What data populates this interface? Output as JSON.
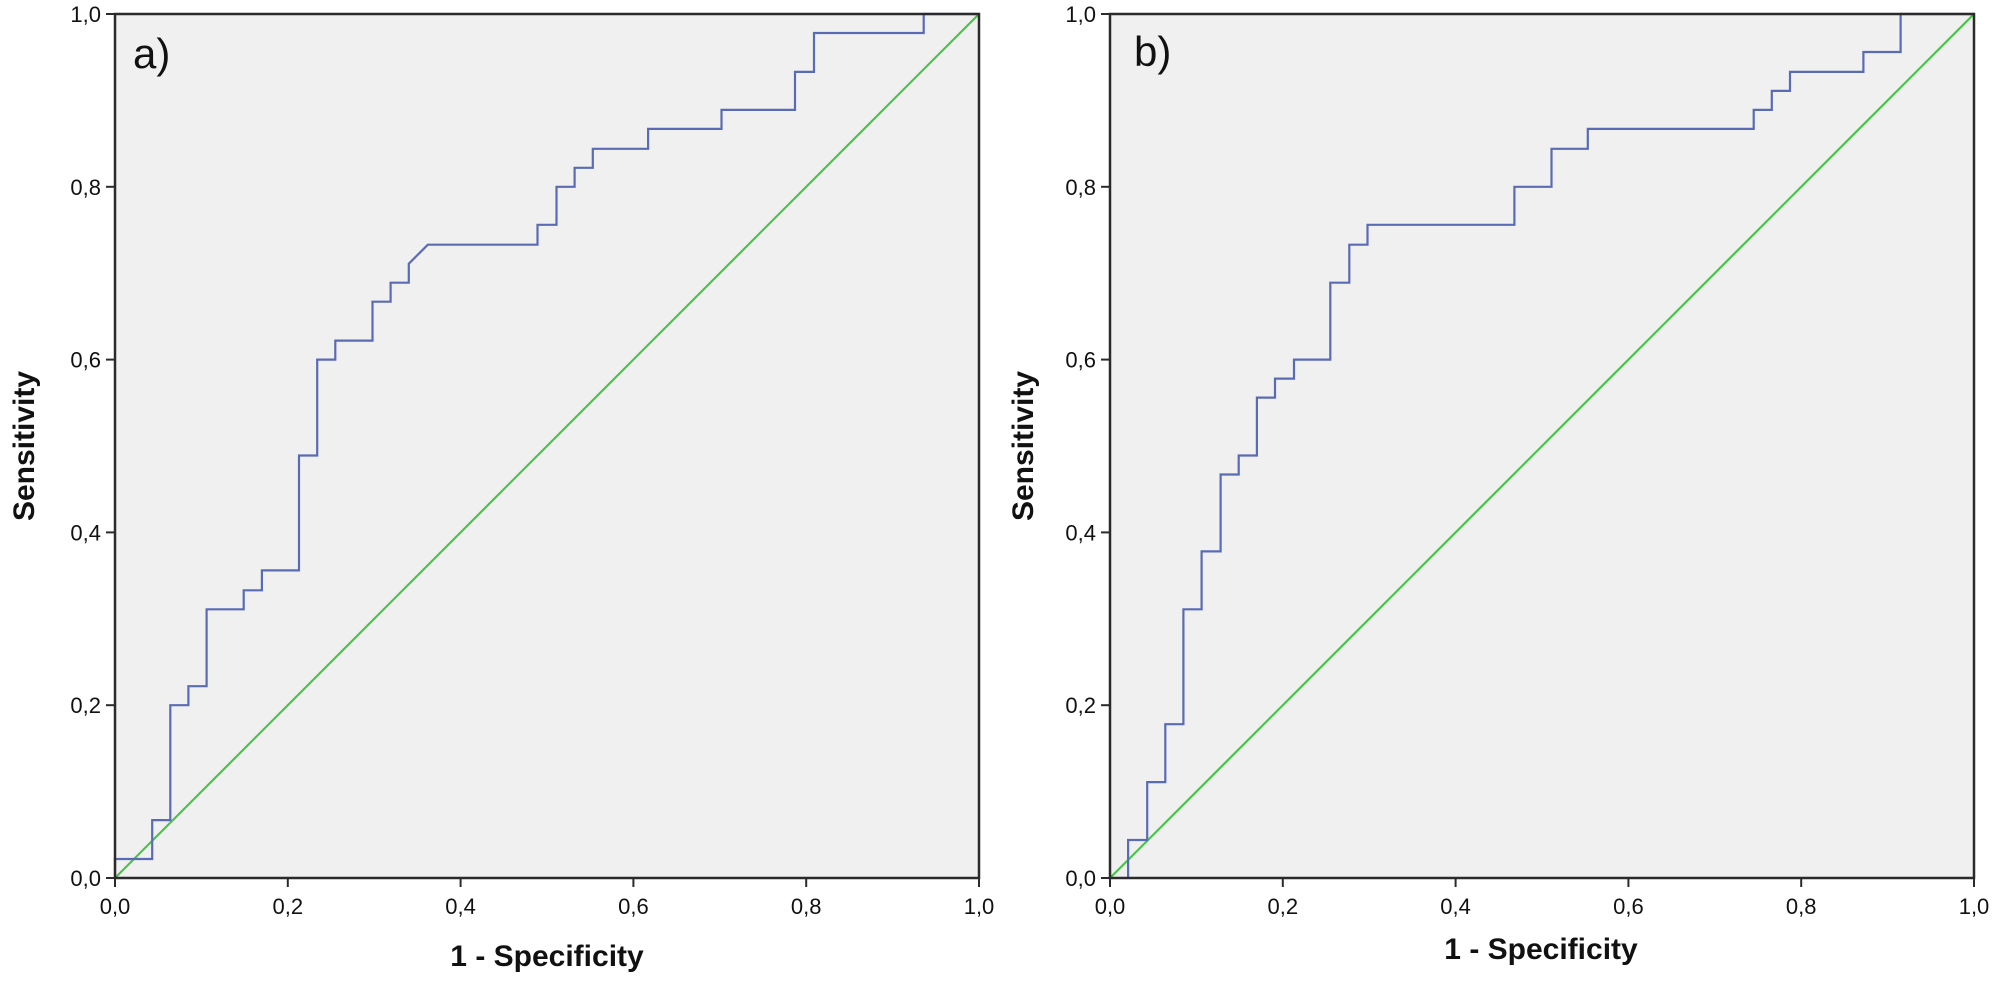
{
  "chart_data": [
    {
      "type": "line",
      "panel_label": "a)",
      "xlabel": "1 - Specificity",
      "ylabel": "Sensitivity",
      "xlim": [
        0,
        1
      ],
      "ylim": [
        0,
        1
      ],
      "x_ticks": [
        "0,0",
        "0,2",
        "0,4",
        "0,6",
        "0,8",
        "1,0"
      ],
      "y_ticks": [
        "0,0",
        "0,2",
        "0,4",
        "0,6",
        "0,8",
        "1,0"
      ],
      "grid": false,
      "background": "#f0f0f0",
      "series": [
        {
          "color": "#5a6bb5",
          "style": "step",
          "points": [
            [
              0.0,
              0.0
            ],
            [
              0.0,
              0.022
            ],
            [
              0.043,
              0.022
            ],
            [
              0.043,
              0.067
            ],
            [
              0.064,
              0.067
            ],
            [
              0.064,
              0.2
            ],
            [
              0.085,
              0.2
            ],
            [
              0.085,
              0.222
            ],
            [
              0.106,
              0.222
            ],
            [
              0.106,
              0.311
            ],
            [
              0.149,
              0.311
            ],
            [
              0.149,
              0.333
            ],
            [
              0.17,
              0.333
            ],
            [
              0.17,
              0.356
            ],
            [
              0.213,
              0.356
            ],
            [
              0.213,
              0.489
            ],
            [
              0.234,
              0.489
            ],
            [
              0.234,
              0.6
            ],
            [
              0.255,
              0.6
            ],
            [
              0.255,
              0.622
            ],
            [
              0.298,
              0.622
            ],
            [
              0.298,
              0.667
            ],
            [
              0.319,
              0.667
            ],
            [
              0.319,
              0.689
            ],
            [
              0.34,
              0.689
            ],
            [
              0.34,
              0.711
            ],
            [
              0.362,
              0.733
            ],
            [
              0.489,
              0.733
            ],
            [
              0.489,
              0.756
            ],
            [
              0.511,
              0.756
            ],
            [
              0.511,
              0.8
            ],
            [
              0.532,
              0.8
            ],
            [
              0.532,
              0.822
            ],
            [
              0.553,
              0.822
            ],
            [
              0.553,
              0.844
            ],
            [
              0.617,
              0.844
            ],
            [
              0.617,
              0.867
            ],
            [
              0.702,
              0.867
            ],
            [
              0.702,
              0.889
            ],
            [
              0.787,
              0.889
            ],
            [
              0.787,
              0.933
            ],
            [
              0.809,
              0.933
            ],
            [
              0.809,
              0.978
            ],
            [
              0.936,
              0.978
            ],
            [
              0.936,
              1.0
            ],
            [
              1.0,
              1.0
            ]
          ]
        },
        {
          "color": "#4cc24c",
          "style": "line",
          "points": [
            [
              0,
              0
            ],
            [
              1,
              1
            ]
          ]
        }
      ]
    },
    {
      "type": "line",
      "panel_label": "b)",
      "xlabel": "1 - Specificity",
      "ylabel": "Sensitivity",
      "xlim": [
        0,
        1
      ],
      "ylim": [
        0,
        1
      ],
      "x_ticks": [
        "0,0",
        "0,2",
        "0,4",
        "0,6",
        "0,8",
        "1,0"
      ],
      "y_ticks": [
        "0,0",
        "0,2",
        "0,4",
        "0,6",
        "0,8",
        "1,0"
      ],
      "grid": false,
      "background": "#f0f0f0",
      "series": [
        {
          "color": "#5a6bb5",
          "style": "step",
          "points": [
            [
              0.021,
              0.0
            ],
            [
              0.021,
              0.044
            ],
            [
              0.043,
              0.044
            ],
            [
              0.043,
              0.111
            ],
            [
              0.064,
              0.111
            ],
            [
              0.064,
              0.178
            ],
            [
              0.085,
              0.178
            ],
            [
              0.085,
              0.311
            ],
            [
              0.106,
              0.311
            ],
            [
              0.106,
              0.378
            ],
            [
              0.128,
              0.378
            ],
            [
              0.128,
              0.467
            ],
            [
              0.149,
              0.467
            ],
            [
              0.149,
              0.489
            ],
            [
              0.17,
              0.489
            ],
            [
              0.17,
              0.556
            ],
            [
              0.191,
              0.556
            ],
            [
              0.191,
              0.578
            ],
            [
              0.213,
              0.578
            ],
            [
              0.213,
              0.6
            ],
            [
              0.255,
              0.6
            ],
            [
              0.255,
              0.689
            ],
            [
              0.277,
              0.689
            ],
            [
              0.277,
              0.733
            ],
            [
              0.298,
              0.733
            ],
            [
              0.298,
              0.756
            ],
            [
              0.468,
              0.756
            ],
            [
              0.468,
              0.8
            ],
            [
              0.511,
              0.8
            ],
            [
              0.511,
              0.844
            ],
            [
              0.553,
              0.844
            ],
            [
              0.553,
              0.867
            ],
            [
              0.745,
              0.867
            ],
            [
              0.745,
              0.889
            ],
            [
              0.766,
              0.889
            ],
            [
              0.766,
              0.911
            ],
            [
              0.787,
              0.911
            ],
            [
              0.787,
              0.933
            ],
            [
              0.872,
              0.933
            ],
            [
              0.872,
              0.956
            ],
            [
              0.915,
              0.956
            ],
            [
              0.915,
              1.0
            ],
            [
              1.0,
              1.0
            ]
          ]
        },
        {
          "color": "#4cc24c",
          "style": "line",
          "points": [
            [
              0,
              0
            ],
            [
              1,
              1
            ]
          ]
        }
      ]
    }
  ]
}
